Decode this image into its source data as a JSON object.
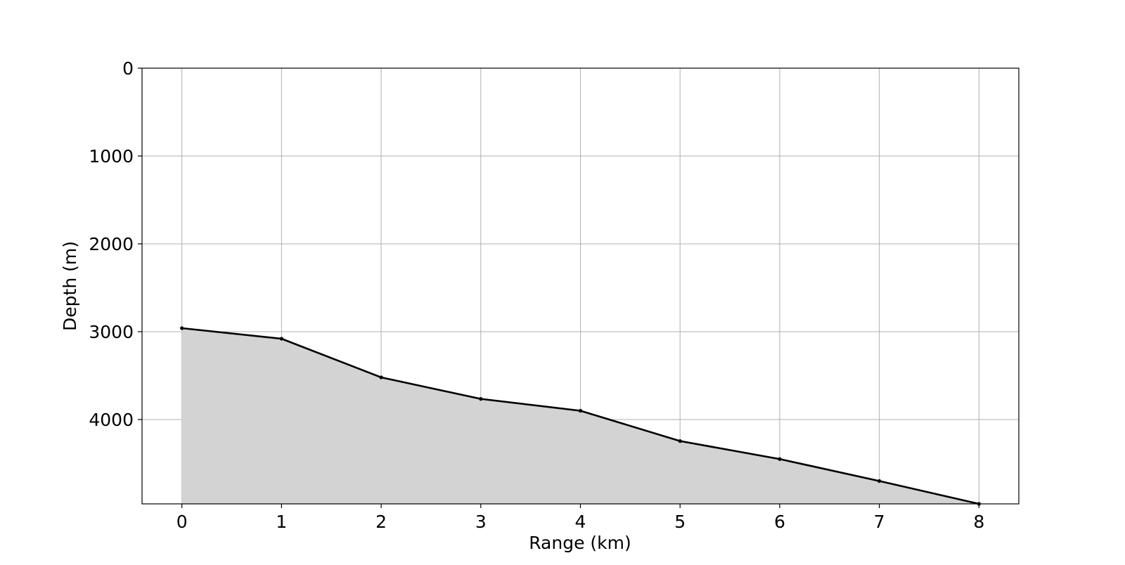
{
  "chart_data": {
    "type": "area",
    "title": "",
    "xlabel": "Range (km)",
    "ylabel": "Depth (m)",
    "x": [
      0,
      1,
      2,
      3,
      4,
      5,
      6,
      7,
      8
    ],
    "series": [
      {
        "values": [
          2960,
          3080,
          3520,
          3765,
          3900,
          4245,
          4450,
          4700,
          4960
        ],
        "line_color": "#000000",
        "fill_color": "#d3d3d3",
        "marker": "point"
      }
    ],
    "xlim": [
      -0.4,
      8.4
    ],
    "ylim": [
      4960,
      0
    ],
    "y_inverted": true,
    "xticks": [
      0,
      1,
      2,
      3,
      4,
      5,
      6,
      7,
      8
    ],
    "yticks": [
      0,
      1000,
      2000,
      3000,
      4000
    ],
    "xtick_labels": [
      "0",
      "1",
      "2",
      "3",
      "4",
      "5",
      "6",
      "7",
      "8"
    ],
    "ytick_labels": [
      "0",
      "1000",
      "2000",
      "3000",
      "4000"
    ],
    "grid": true,
    "grid_color": "#b0b0b0",
    "legend": "none"
  }
}
